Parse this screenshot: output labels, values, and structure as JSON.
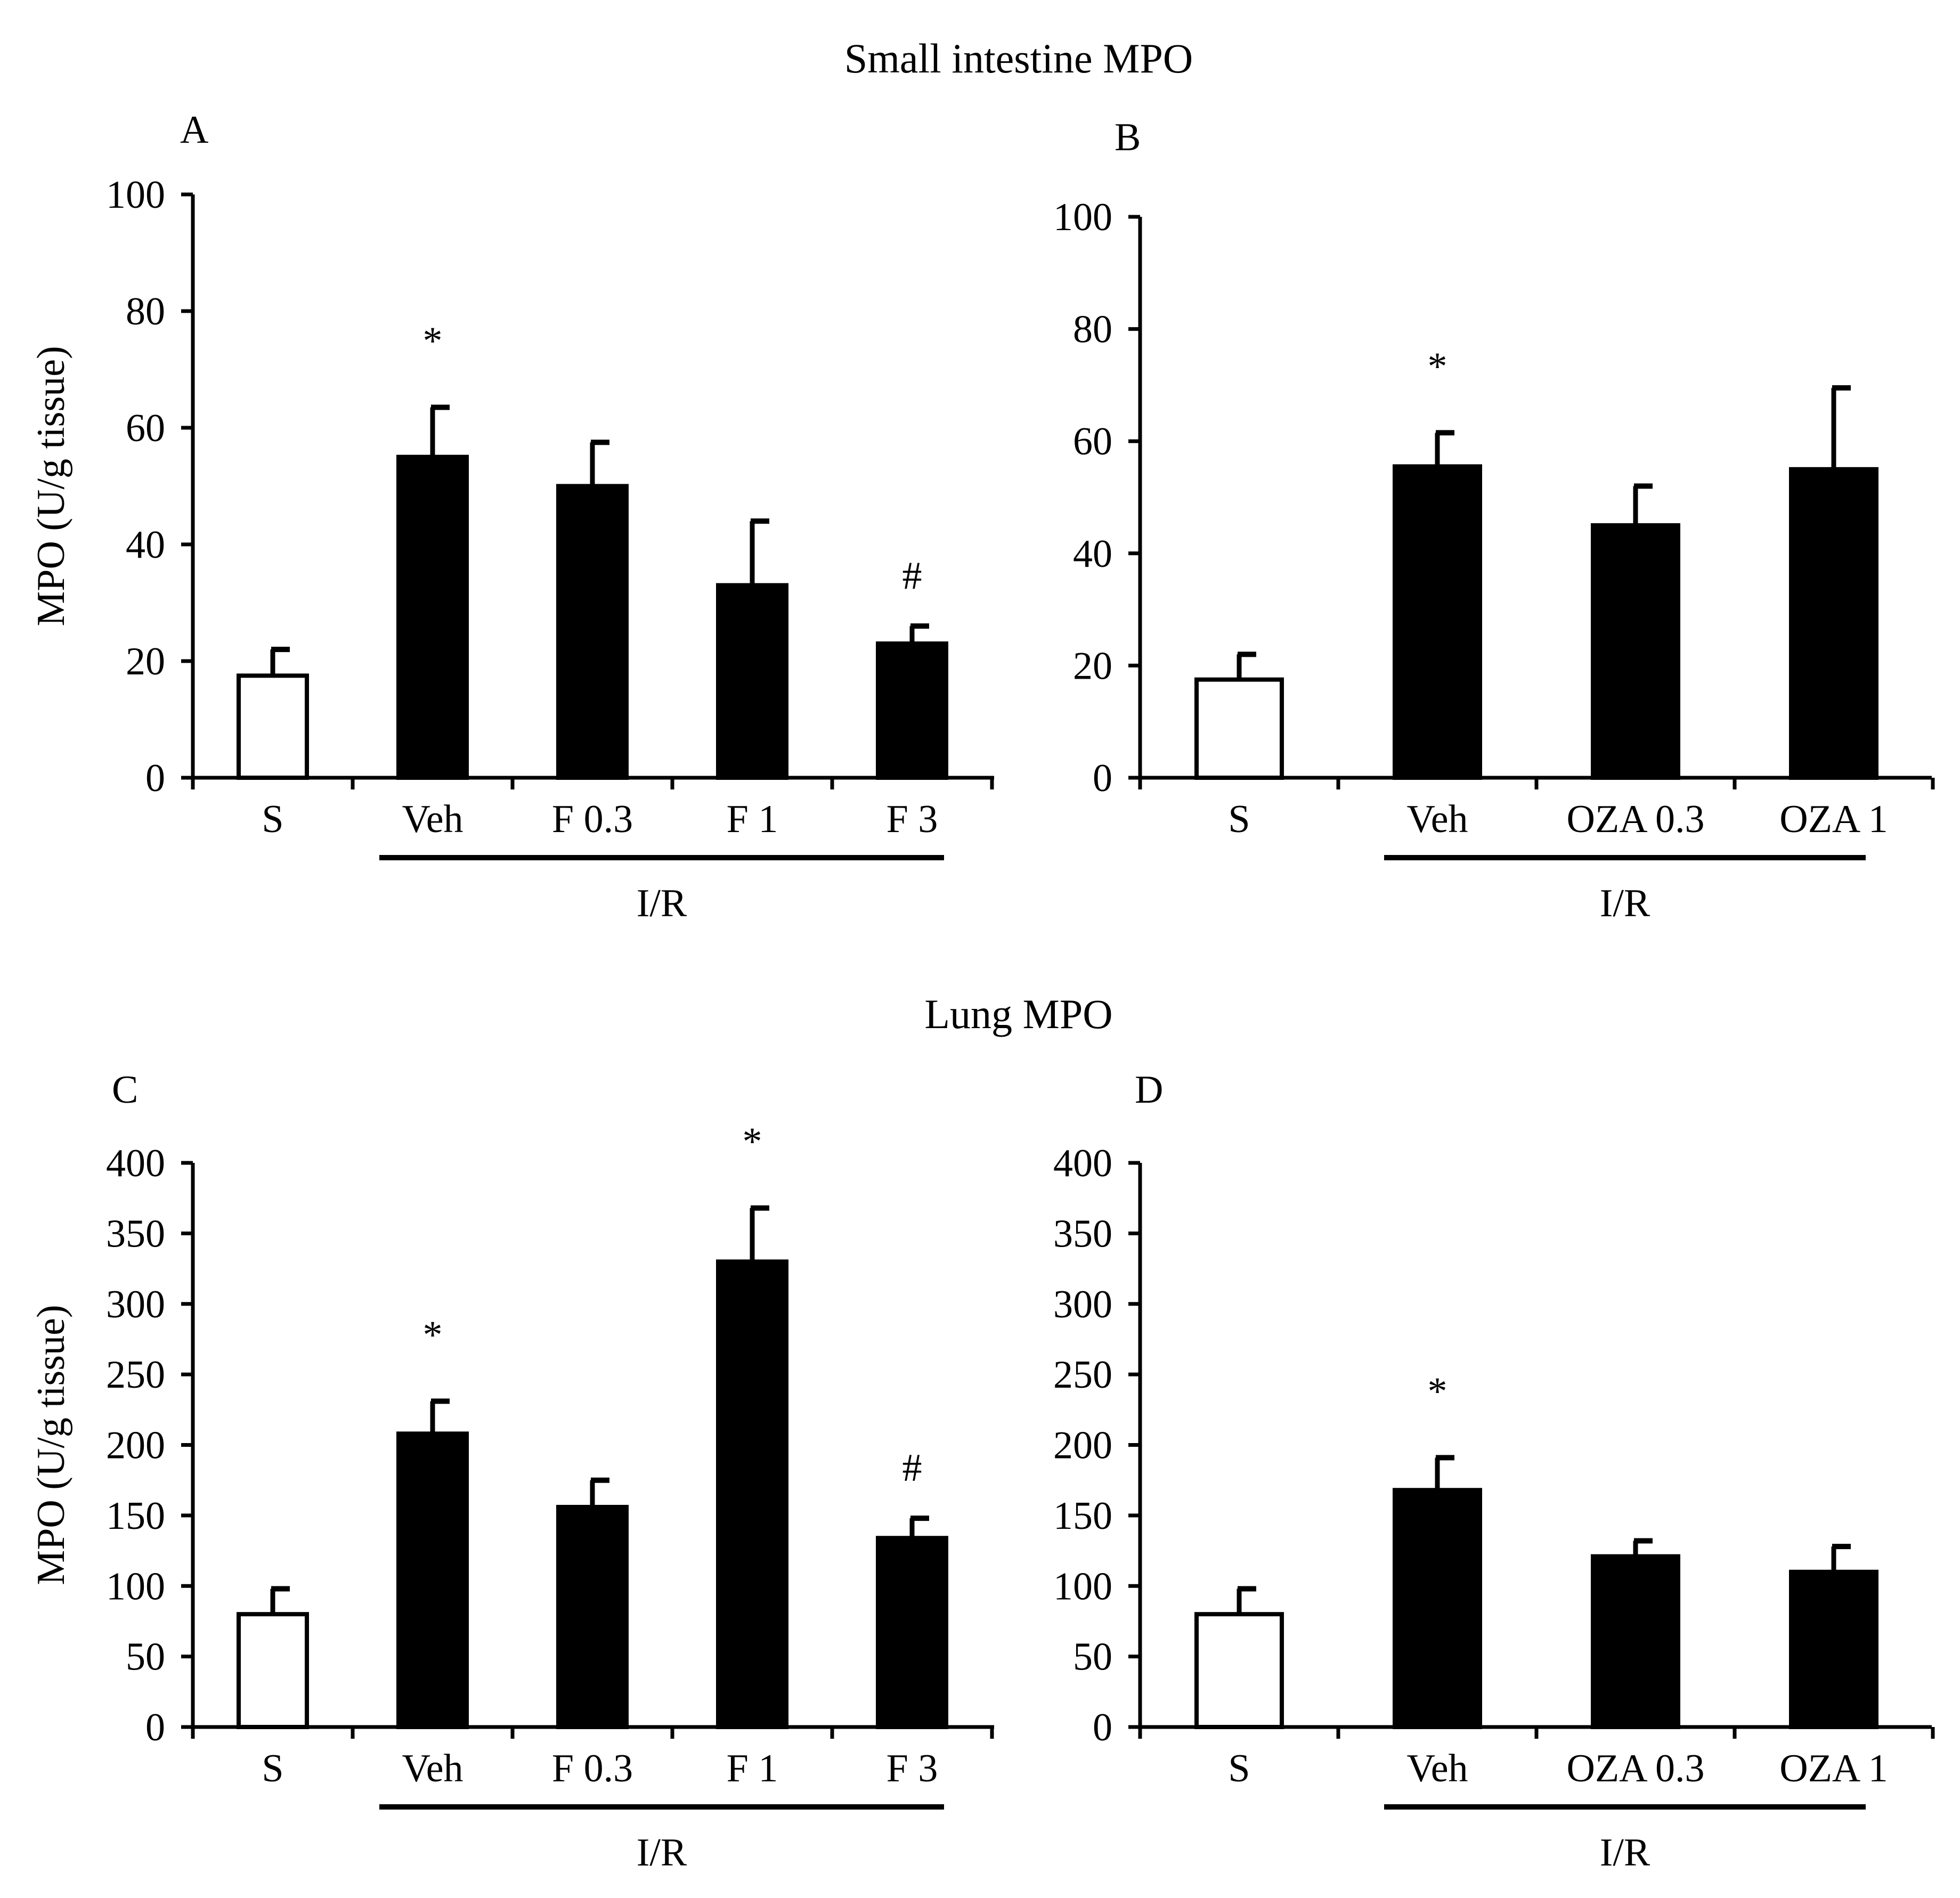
{
  "figure": {
    "section_titles": [
      "Small intestine MPO",
      "Lung MPO"
    ]
  },
  "colors": {
    "control_fill": "#ffffff",
    "treatment_fill": "#000000",
    "stroke": "#000000"
  },
  "chart_data": [
    {
      "panel": "A",
      "type": "bar",
      "section": "Small intestine MPO",
      "categories": [
        "S",
        "Veh",
        "F 0.3",
        "F 1",
        "F 3"
      ],
      "values": [
        17.5,
        55,
        50,
        33,
        23
      ],
      "errors": [
        4.5,
        8.5,
        7.5,
        11,
        3
      ],
      "fills": [
        "white",
        "black",
        "black",
        "black",
        "black"
      ],
      "significance": [
        "",
        "*",
        "",
        "",
        "#"
      ],
      "ylim": [
        0,
        100
      ],
      "yticks": [
        0,
        20,
        40,
        60,
        80,
        100
      ],
      "ylabel": "MPO (U/g tissue)",
      "xlabel": "",
      "group": {
        "label": "I/R",
        "from": 1,
        "to": 4
      }
    },
    {
      "panel": "B",
      "type": "bar",
      "section": "Small intestine MPO",
      "categories": [
        "S",
        "Veh",
        "OZA 0.3",
        "OZA 1"
      ],
      "values": [
        17.5,
        55.5,
        45,
        55
      ],
      "errors": [
        4.5,
        6,
        7,
        14.5
      ],
      "fills": [
        "white",
        "black",
        "black",
        "black"
      ],
      "significance": [
        "",
        "*",
        "",
        ""
      ],
      "ylim": [
        0,
        100
      ],
      "yticks": [
        0,
        20,
        40,
        60,
        80,
        100
      ],
      "ylabel": "",
      "xlabel": "",
      "group": {
        "label": "I/R",
        "from": 1,
        "to": 3
      }
    },
    {
      "panel": "C",
      "type": "bar",
      "section": "Lung MPO",
      "categories": [
        "S",
        "Veh",
        "F 0.3",
        "F 1",
        "F 3"
      ],
      "values": [
        80,
        208,
        156,
        330,
        134
      ],
      "errors": [
        18,
        23,
        19,
        38,
        14
      ],
      "fills": [
        "white",
        "black",
        "black",
        "black",
        "black"
      ],
      "significance": [
        "",
        "*",
        "",
        "*",
        "#"
      ],
      "ylim": [
        0,
        400
      ],
      "yticks": [
        0,
        50,
        100,
        150,
        200,
        250,
        300,
        350,
        400
      ],
      "ylabel": "MPO (U/g tissue)",
      "xlabel": "",
      "group": {
        "label": "I/R",
        "from": 1,
        "to": 4
      }
    },
    {
      "panel": "D",
      "type": "bar",
      "section": "Lung MPO",
      "categories": [
        "S",
        "Veh",
        "OZA 0.3",
        "OZA 1"
      ],
      "values": [
        80,
        168,
        121,
        110
      ],
      "errors": [
        18,
        23,
        11,
        18
      ],
      "fills": [
        "white",
        "black",
        "black",
        "black"
      ],
      "significance": [
        "",
        "*",
        "",
        ""
      ],
      "ylim": [
        0,
        400
      ],
      "yticks": [
        0,
        50,
        100,
        150,
        200,
        250,
        300,
        350,
        400
      ],
      "ylabel": "",
      "xlabel": "",
      "group": {
        "label": "I/R",
        "from": 1,
        "to": 3
      }
    }
  ]
}
